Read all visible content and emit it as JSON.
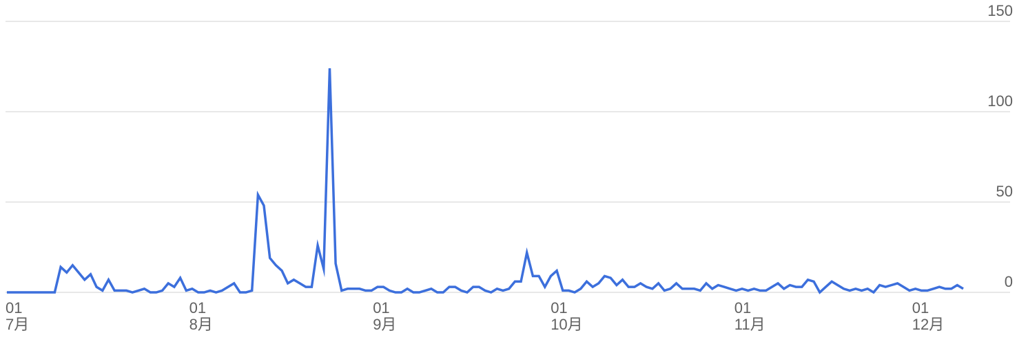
{
  "chart_data": {
    "type": "line",
    "title": "",
    "xlabel": "",
    "ylabel": "",
    "ylim": [
      0,
      150
    ],
    "grid": true,
    "y_ticks": [
      0,
      50,
      100,
      150
    ],
    "x_ticks": [
      {
        "day": "01",
        "month": "7月",
        "index": 0
      },
      {
        "day": "01",
        "month": "8月",
        "index": 31
      },
      {
        "day": "01",
        "month": "9月",
        "index": 62
      },
      {
        "day": "01",
        "month": "10月",
        "index": 92
      },
      {
        "day": "01",
        "month": "11月",
        "index": 123
      },
      {
        "day": "01",
        "month": "12月",
        "index": 153
      }
    ],
    "x_range": [
      "7月 01",
      "12月 11"
    ],
    "colors": {
      "line": "#3c6fdc",
      "grid": "#e0e0e0",
      "axis_text": "#616161"
    },
    "series": [
      {
        "name": "",
        "values": [
          0,
          0,
          0,
          0,
          0,
          0,
          0,
          0,
          0,
          14,
          11,
          15,
          11,
          7,
          10,
          3,
          1,
          7,
          1,
          1,
          1,
          0,
          1,
          2,
          0,
          0,
          1,
          5,
          3,
          8,
          1,
          2,
          0,
          0,
          1,
          0,
          1,
          3,
          5,
          0,
          0,
          1,
          54,
          48,
          19,
          15,
          12,
          5,
          7,
          5,
          3,
          3,
          26,
          13,
          124,
          16,
          1,
          2,
          2,
          2,
          1,
          1,
          3,
          3,
          1,
          0,
          0,
          2,
          0,
          0,
          1,
          2,
          0,
          0,
          3,
          3,
          1,
          0,
          3,
          3,
          1,
          0,
          2,
          1,
          2,
          6,
          6,
          22,
          9,
          9,
          3,
          9,
          12,
          1,
          1,
          0,
          2,
          6,
          3,
          5,
          9,
          8,
          4,
          7,
          3,
          3,
          5,
          3,
          2,
          5,
          1,
          2,
          5,
          2,
          2,
          2,
          1,
          5,
          2,
          4,
          3,
          2,
          1,
          2,
          1,
          2,
          1,
          1,
          3,
          5,
          2,
          4,
          3,
          3,
          7,
          6,
          0,
          3,
          6,
          4,
          2,
          1,
          2,
          1,
          2,
          0,
          4,
          3,
          4,
          5,
          3,
          1,
          2,
          1,
          1,
          2,
          3,
          2,
          2,
          4,
          2
        ]
      }
    ]
  }
}
